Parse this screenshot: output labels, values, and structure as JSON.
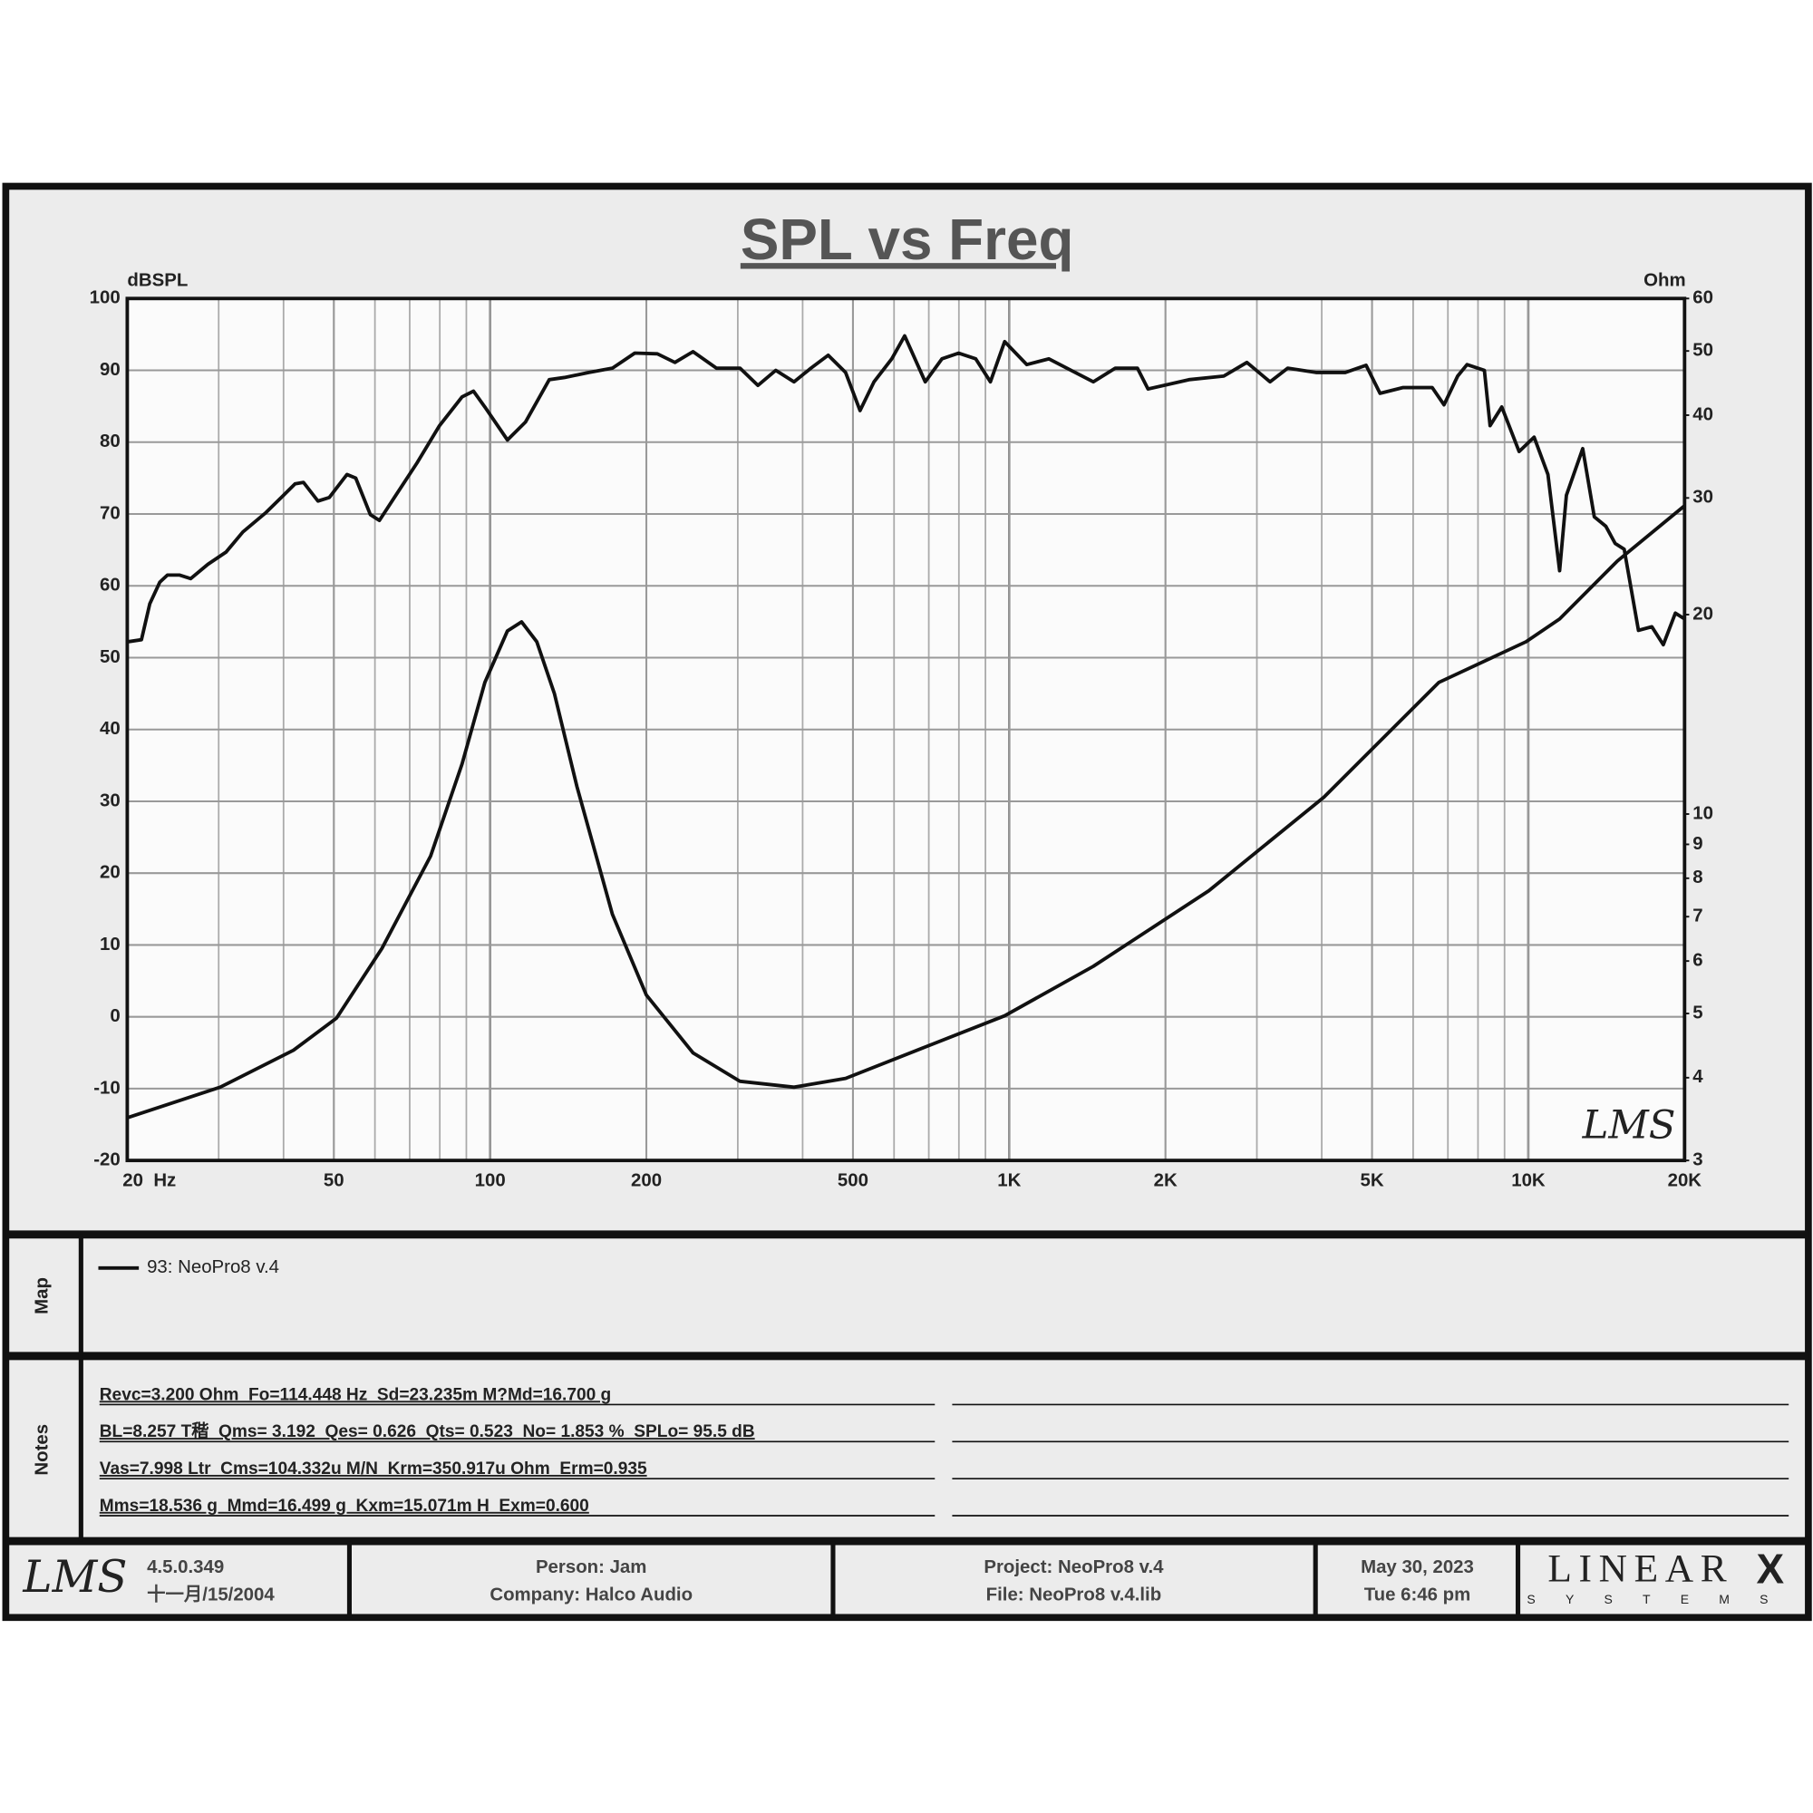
{
  "chart_data": {
    "type": "line",
    "title": "SPL vs Freq",
    "y_label": "dBSPL",
    "y2_label": "Ohm",
    "watermark": "LMS",
    "xscale": "log",
    "y2scale": "log",
    "grid": true,
    "xlim": [
      20,
      20000
    ],
    "xticks": [
      {
        "value": 20,
        "label": "20  Hz"
      },
      50,
      100,
      200,
      500,
      {
        "value": 1000,
        "label": "1K"
      },
      {
        "value": 2000,
        "label": "2K"
      },
      {
        "value": 5000,
        "label": "5K"
      },
      {
        "value": 10000,
        "label": "10K"
      },
      {
        "value": 20000,
        "label": "20K"
      }
    ],
    "ylim": [
      -20,
      100
    ],
    "yticks": [
      -20,
      -10,
      0,
      10,
      20,
      30,
      40,
      50,
      60,
      70,
      80,
      90,
      100
    ],
    "y2lim": [
      3,
      60
    ],
    "y2ticks": [
      3,
      4,
      5,
      6,
      7,
      8,
      9,
      10,
      20,
      30,
      40,
      50,
      60
    ],
    "series": [
      {
        "color": "#111111",
        "x": [
          20,
          21.3,
          22.1,
          23.1,
          23.9,
          25.2,
          26.5,
          28.6,
          31,
          33.4,
          37,
          40,
          42.1,
          43.7,
          46.6,
          49,
          53,
          55.1,
          58.8,
          61.2,
          65.4,
          72.3,
          79.9,
          88.3,
          92.9,
          97.7,
          108,
          117,
          130,
          139,
          155,
          172,
          190,
          210,
          227,
          246,
          273,
          303,
          328,
          355,
          385,
          415,
          448,
          484,
          516,
          549,
          594,
          629,
          689,
          742,
          799,
          862,
          920,
          980,
          1081,
          1192,
          1316,
          1452,
          1601,
          1766,
          1851,
          2220,
          2590,
          2870,
          3180,
          3440,
          3900,
          4440,
          4870,
          5180,
          5740,
          6530,
          6880,
          7310,
          7620,
          8230,
          8440,
          8890,
          9600,
          10260,
          10910,
          11490,
          11840,
          12730,
          13400,
          14100,
          14700,
          15300,
          16300,
          17300,
          18200,
          19200,
          20000
        ],
        "values": [
          52.2,
          52.5,
          57.5,
          60.5,
          61.5,
          61.5,
          61,
          63,
          64.7,
          67.5,
          70.2,
          72.6,
          74.2,
          74.4,
          71.8,
          72.3,
          75.5,
          75,
          69.9,
          69.1,
          72.3,
          77.1,
          82.3,
          86.3,
          87.1,
          84.9,
          80.3,
          82.8,
          88.7,
          89,
          89.7,
          90.3,
          92.4,
          92.3,
          91.1,
          92.6,
          90.3,
          90.3,
          87.9,
          90,
          88.4,
          90.3,
          92.1,
          89.7,
          84.4,
          88.4,
          91.6,
          94.8,
          88.4,
          91.6,
          92.4,
          91.6,
          88.4,
          94,
          90.8,
          91.6,
          90,
          88.4,
          90.3,
          90.3,
          87.4,
          88.7,
          89.2,
          91.1,
          88.4,
          90.3,
          89.7,
          89.7,
          90.7,
          86.8,
          87.6,
          87.6,
          85.2,
          89.2,
          90.8,
          90,
          82.3,
          84.9,
          78.7,
          80.7,
          75.5,
          62.1,
          72.6,
          79.1,
          69.6,
          68.3,
          65.9,
          65.1,
          53.8,
          54.3,
          51.8,
          56.2,
          55.4
        ]
      },
      {
        "color": "#111111",
        "axis": "y2",
        "x": [
          20,
          30.2,
          41.8,
          50.6,
          61.9,
          76.8,
          88.3,
          97.7,
          108,
          115,
          123,
          133,
          147,
          172,
          200,
          246,
          303,
          385,
          484,
          689,
          980,
          1452,
          2424,
          4037,
          6724,
          9900,
          11490,
          14850,
          20000
        ],
        "values": [
          3.48,
          3.87,
          4.4,
          4.92,
          6.27,
          8.64,
          11.9,
          15.8,
          18.9,
          19.5,
          18.2,
          15.2,
          11,
          7.06,
          5.33,
          4.36,
          3.95,
          3.87,
          3.99,
          4.45,
          4.96,
          5.89,
          7.66,
          10.6,
          15.8,
          18.2,
          19.7,
          24.1,
          29.2
        ]
      }
    ]
  },
  "map": {
    "label": "Map",
    "legend": "93: NeoPro8 v.4"
  },
  "notes": {
    "label": "Notes",
    "lines": [
      "Revc=3.200 Ohm  Fo=114.448 Hz  Sd=23.235m M?Md=16.700 g",
      "BL=8.257 T稭  Qms= 3.192  Qes= 0.626  Qts= 0.523  No= 1.853 %  SPLo= 95.5 dB",
      "Vas=7.998 Ltr  Cms=104.332u M/N  Krm=350.917u Ohm  Erm=0.935",
      "Mms=18.536 g  Mmd=16.499 g  Kxm=15.071m H  Exm=0.600"
    ]
  },
  "footer": {
    "logo": "LMS",
    "version": "4.5.0.349",
    "build_date": "十一月/15/2004",
    "person": "Person: Jam",
    "company": "Company: Halco Audio",
    "project": "Project: NeoPro8 v.4",
    "file": "File: NeoPro8 v.4.lib",
    "date": "May 30, 2023",
    "time": "Tue  6:46 pm",
    "brand": "LINEAR",
    "brand_mark": "X",
    "brand_sub": "SYSTEMS"
  }
}
